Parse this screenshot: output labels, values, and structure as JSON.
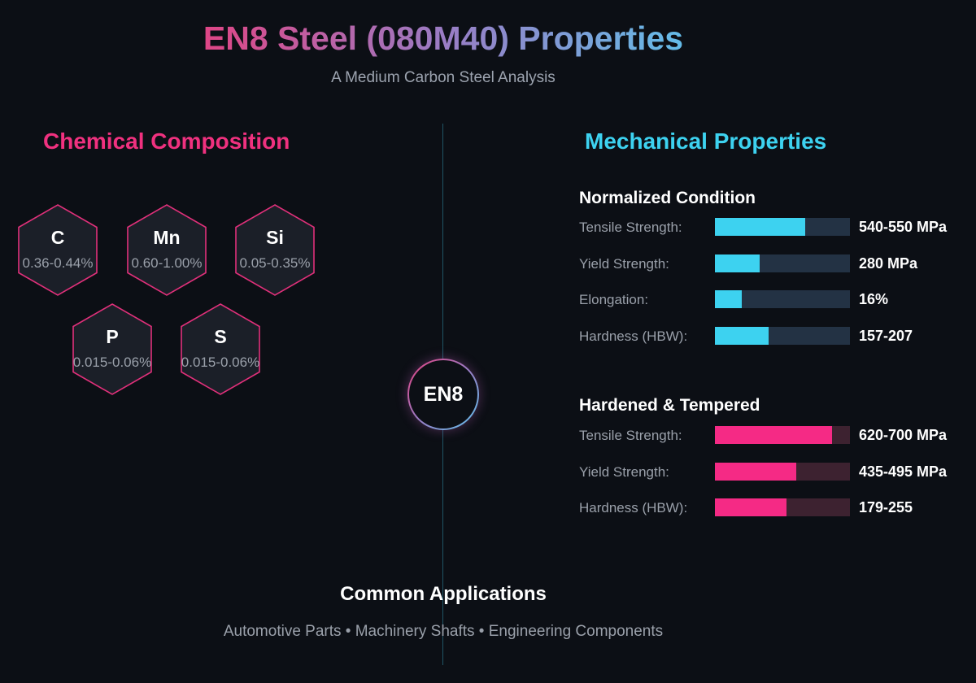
{
  "header": {
    "title": "EN8 Steel (080M40) Properties",
    "subtitle": "A Medium Carbon Steel Analysis"
  },
  "chemical": {
    "title": "Chemical Composition",
    "elements": [
      {
        "symbol": "C",
        "range": "0.36-0.44%"
      },
      {
        "symbol": "Mn",
        "range": "0.60-1.00%"
      },
      {
        "symbol": "Si",
        "range": "0.05-0.35%"
      },
      {
        "symbol": "P",
        "range": "0.015-0.06%"
      },
      {
        "symbol": "S",
        "range": "0.015-0.06%"
      }
    ]
  },
  "center_badge": "EN8",
  "mechanical": {
    "title": "Mechanical Properties",
    "groups": [
      {
        "title": "Normalized Condition",
        "color": "#3dd2f0",
        "rows": [
          {
            "label": "Tensile Strength:",
            "value": "540-550 MPa",
            "fill": 0.67
          },
          {
            "label": "Yield Strength:",
            "value": "280 MPa",
            "fill": 0.33
          },
          {
            "label": "Elongation:",
            "value": "16%",
            "fill": 0.2
          },
          {
            "label": "Hardness (HBW):",
            "value": "157-207",
            "fill": 0.4
          }
        ]
      },
      {
        "title": "Hardened & Tempered",
        "color": "#f52a85",
        "rows": [
          {
            "label": "Tensile Strength:",
            "value": "620-700 MPa",
            "fill": 0.87
          },
          {
            "label": "Yield Strength:",
            "value": "435-495 MPa",
            "fill": 0.6
          },
          {
            "label": "Hardness (HBW):",
            "value": "179-255",
            "fill": 0.53
          }
        ]
      }
    ]
  },
  "applications": {
    "title": "Common Applications",
    "text": "Automotive Parts • Machinery Shafts • Engineering Components"
  }
}
